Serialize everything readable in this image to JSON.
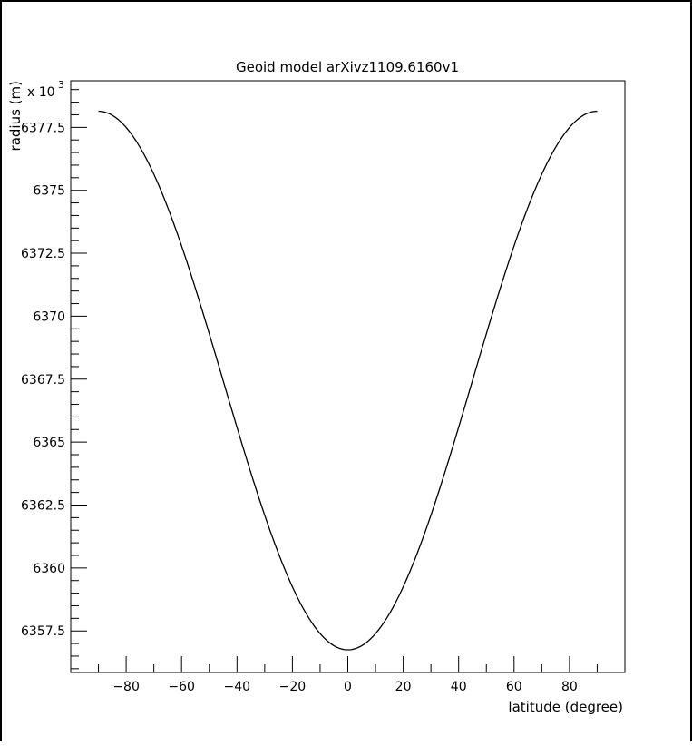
{
  "chart_data": {
    "type": "line",
    "title": "Geoid model arXivz1109.6160v1",
    "xlabel": "latitude (degree)",
    "ylabel": "radius (m)",
    "y_multiplier_label": "x 10",
    "y_multiplier_exp": "3",
    "xlim": [
      -100,
      100
    ],
    "ylim": [
      6355.85,
      6379.35
    ],
    "x_ticks": [
      -80,
      -60,
      -40,
      -20,
      0,
      20,
      40,
      60,
      80
    ],
    "x_tick_labels": [
      "−80",
      "−60",
      "−40",
      "−20",
      "0",
      "20",
      "40",
      "60",
      "80"
    ],
    "y_ticks": [
      6357.5,
      6360,
      6362.5,
      6365,
      6367.5,
      6370,
      6372.5,
      6375,
      6377.5
    ],
    "y_tick_labels": [
      "6357.5",
      "6360",
      "6362.5",
      "6365",
      "6367.5",
      "6370",
      "6372.5",
      "6375",
      "6377.5"
    ],
    "grid": false,
    "series": [
      {
        "color": "#000000",
        "x_range": [
          -90,
          90
        ],
        "equatorial_radius": 6356.75,
        "polar_radius": 6378.14,
        "x": [
          -90,
          -80,
          -70,
          -60,
          -50,
          -40,
          -30,
          -20,
          -10,
          0,
          10,
          20,
          30,
          40,
          50,
          60,
          70,
          80,
          90
        ],
        "y": [
          6378.14,
          6377.5,
          6375.6,
          6372.8,
          6369.3,
          6365.6,
          6362.1,
          6359.3,
          6357.4,
          6356.75,
          6357.4,
          6359.3,
          6362.1,
          6365.6,
          6369.3,
          6372.8,
          6375.6,
          6377.5,
          6378.14
        ]
      }
    ]
  }
}
